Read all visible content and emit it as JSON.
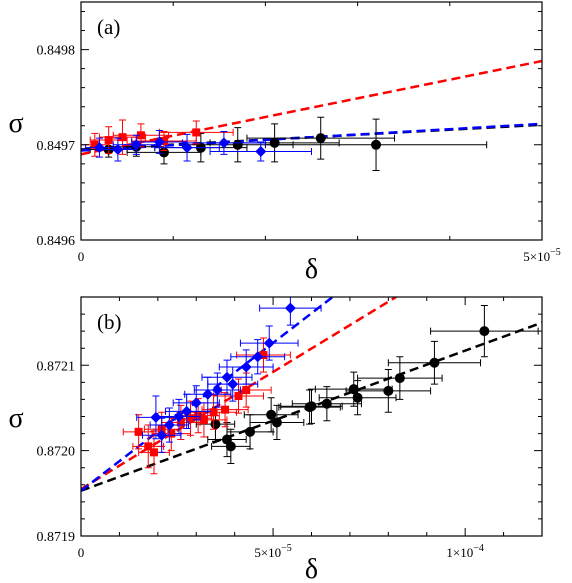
{
  "chart_data": [
    {
      "panel_label": "(a)",
      "type": "scatter",
      "xlabel": "δ",
      "ylabel": "σ",
      "xlim": [
        0,
        5e-05
      ],
      "ylim": [
        0.8496,
        0.84985
      ],
      "x_ticks": [
        {
          "value": 0,
          "label": "0"
        },
        {
          "value": 5e-05,
          "label": "5×10",
          "exp": "−5"
        }
      ],
      "y_ticks": [
        {
          "value": 0.8496,
          "label": "0.8496"
        },
        {
          "value": 0.8497,
          "label": "0.8497"
        },
        {
          "value": 0.8498,
          "label": "0.8498"
        }
      ],
      "series": [
        {
          "color": "#000000",
          "marker": "circle",
          "points": [
            {
              "x": 3e-06,
              "y": 0.849695,
              "xerr": 2e-06,
              "yerr": 8e-06
            },
            {
              "x": 6e-06,
              "y": 0.849698,
              "xerr": 3e-06,
              "yerr": 1e-05
            },
            {
              "x": 9e-06,
              "y": 0.849692,
              "xerr": 4e-06,
              "yerr": 1.2e-05
            },
            {
              "x": 1.3e-05,
              "y": 0.849697,
              "xerr": 5e-06,
              "yerr": 1.5e-05
            },
            {
              "x": 1.7e-05,
              "y": 0.8497,
              "xerr": 6e-06,
              "yerr": 1.8e-05
            },
            {
              "x": 2.1e-05,
              "y": 0.849702,
              "xerr": 7e-06,
              "yerr": 2e-05
            },
            {
              "x": 2.6e-05,
              "y": 0.849707,
              "xerr": 8e-06,
              "yerr": 2.2e-05
            },
            {
              "x": 3.2e-05,
              "y": 0.8497,
              "xerr": 1.2e-05,
              "yerr": 2.7e-05
            }
          ],
          "fit": {
            "x": [
              0,
              5e-05
            ],
            "y": [
              0.849695,
              0.849721
            ]
          }
        },
        {
          "color": "#ff0000",
          "marker": "square",
          "points": [
            {
              "x": 1.5e-06,
              "y": 0.8497,
              "xerr": 1.5e-06,
              "yerr": 1.2e-05
            },
            {
              "x": 3e-06,
              "y": 0.849705,
              "xerr": 2e-06,
              "yerr": 1.4e-05
            },
            {
              "x": 4.5e-06,
              "y": 0.849708,
              "xerr": 2.5e-06,
              "yerr": 1.8e-05
            },
            {
              "x": 6.5e-06,
              "y": 0.84971,
              "xerr": 3e-06,
              "yerr": 1.2e-05
            },
            {
              "x": 9e-06,
              "y": 0.849704,
              "xerr": 3.5e-06,
              "yerr": 1e-05
            },
            {
              "x": 1.25e-05,
              "y": 0.849713,
              "xerr": 4e-06,
              "yerr": 1.2e-05
            }
          ],
          "fit": {
            "x": [
              0,
              5e-05
            ],
            "y": [
              0.84969,
              0.849788
            ]
          }
        },
        {
          "color": "#0000ff",
          "marker": "diamond",
          "points": [
            {
              "x": 2e-06,
              "y": 0.849697,
              "xerr": 1.5e-06,
              "yerr": 1e-05
            },
            {
              "x": 4e-06,
              "y": 0.849695,
              "xerr": 2e-06,
              "yerr": 1.2e-05
            },
            {
              "x": 6e-06,
              "y": 0.8497,
              "xerr": 2.5e-06,
              "yerr": 1e-05
            },
            {
              "x": 8.5e-06,
              "y": 0.849703,
              "xerr": 3e-06,
              "yerr": 1.2e-05
            },
            {
              "x": 1.15e-05,
              "y": 0.849697,
              "xerr": 3.5e-06,
              "yerr": 1.4e-05
            },
            {
              "x": 1.55e-05,
              "y": 0.849702,
              "xerr": 4.5e-06,
              "yerr": 1.2e-05
            },
            {
              "x": 1.95e-05,
              "y": 0.849693,
              "xerr": 5.5e-06,
              "yerr": 1e-05
            }
          ],
          "fit": {
            "x": [
              0,
              5e-05
            ],
            "y": [
              0.849694,
              0.849722
            ]
          }
        }
      ]
    },
    {
      "panel_label": "(b)",
      "type": "scatter",
      "xlabel": "δ",
      "ylabel": "σ",
      "xlim": [
        0,
        0.00012
      ],
      "ylim": [
        0.8719,
        0.87218
      ],
      "x_ticks": [
        {
          "value": 0,
          "label": "0"
        },
        {
          "value": 5e-05,
          "label": "5×10",
          "exp": "−5"
        },
        {
          "value": 0.0001,
          "label": "1×10",
          "exp": "−4"
        }
      ],
      "y_ticks": [
        {
          "value": 0.8719,
          "label": "0.8719"
        },
        {
          "value": 0.872,
          "label": "0.8720"
        },
        {
          "value": 0.8721,
          "label": "0.8721"
        }
      ],
      "series": [
        {
          "color": "#000000",
          "marker": "circle",
          "points": [
            {
              "x": 3.5e-05,
              "y": 0.872031,
              "xerr": 5e-06,
              "yerr": 2e-05
            },
            {
              "x": 3.8e-05,
              "y": 0.872013,
              "xerr": 5e-06,
              "yerr": 2e-05
            },
            {
              "x": 3.9e-05,
              "y": 0.872005,
              "xerr": 5e-06,
              "yerr": 2e-05
            },
            {
              "x": 4.4e-05,
              "y": 0.872022,
              "xerr": 6e-06,
              "yerr": 2e-05
            },
            {
              "x": 4.95e-05,
              "y": 0.872042,
              "xerr": 7e-06,
              "yerr": 2e-05
            },
            {
              "x": 5.1e-05,
              "y": 0.872033,
              "xerr": 7e-06,
              "yerr": 2e-05
            },
            {
              "x": 5.95e-05,
              "y": 0.872051,
              "xerr": 8e-06,
              "yerr": 2e-05
            },
            {
              "x": 6e-05,
              "y": 0.872052,
              "xerr": 8e-06,
              "yerr": 2e-05
            },
            {
              "x": 6.4e-05,
              "y": 0.872055,
              "xerr": 9e-06,
              "yerr": 2e-05
            },
            {
              "x": 7.1e-05,
              "y": 0.872072,
              "xerr": 1e-05,
              "yerr": 2e-05
            },
            {
              "x": 7.2e-05,
              "y": 0.872062,
              "xerr": 1e-05,
              "yerr": 2e-05
            },
            {
              "x": 8e-05,
              "y": 0.87207,
              "xerr": 1.1e-05,
              "yerr": 2.5e-05
            },
            {
              "x": 8.3e-05,
              "y": 0.872085,
              "xerr": 1.1e-05,
              "yerr": 2.5e-05
            },
            {
              "x": 9.2e-05,
              "y": 0.872103,
              "xerr": 1.2e-05,
              "yerr": 2.5e-05
            },
            {
              "x": 0.000105,
              "y": 0.87214,
              "xerr": 1.4e-05,
              "yerr": 3e-05
            }
          ],
          "fit": {
            "x": [
              0,
              0.00012
            ],
            "y": [
              0.871953,
              0.87215
            ]
          }
        },
        {
          "color": "#ff0000",
          "marker": "square",
          "points": [
            {
              "x": 1.5e-05,
              "y": 0.872022,
              "xerr": 4e-06,
              "yerr": 2e-05
            },
            {
              "x": 1.75e-05,
              "y": 0.872005,
              "xerr": 4e-06,
              "yerr": 2.5e-05
            },
            {
              "x": 1.9e-05,
              "y": 0.871998,
              "xerr": 4e-06,
              "yerr": 2.5e-05
            },
            {
              "x": 2.1e-05,
              "y": 0.872025,
              "xerr": 4.5e-06,
              "yerr": 2e-05
            },
            {
              "x": 2.35e-05,
              "y": 0.87202,
              "xerr": 5e-06,
              "yerr": 2e-05
            },
            {
              "x": 2.6e-05,
              "y": 0.872033,
              "xerr": 5e-06,
              "yerr": 2e-05
            },
            {
              "x": 2.85e-05,
              "y": 0.872038,
              "xerr": 5.5e-06,
              "yerr": 2e-05
            },
            {
              "x": 3.05e-05,
              "y": 0.872041,
              "xerr": 5.5e-06,
              "yerr": 2e-05
            },
            {
              "x": 3.2e-05,
              "y": 0.872036,
              "xerr": 6e-06,
              "yerr": 2e-05
            },
            {
              "x": 3.45e-05,
              "y": 0.872045,
              "xerr": 6e-06,
              "yerr": 2e-05
            },
            {
              "x": 3.75e-05,
              "y": 0.872048,
              "xerr": 6e-06,
              "yerr": 2e-05
            },
            {
              "x": 4.1e-05,
              "y": 0.872064,
              "xerr": 6.5e-06,
              "yerr": 2e-05
            },
            {
              "x": 4.3e-05,
              "y": 0.872071,
              "xerr": 6.5e-06,
              "yerr": 2e-05
            },
            {
              "x": 4.75e-05,
              "y": 0.872112,
              "xerr": 7e-06,
              "yerr": 2e-05
            }
          ],
          "fit": {
            "x": [
              0,
              8.2e-05
            ],
            "y": [
              0.871955,
              0.87218
            ]
          }
        },
        {
          "color": "#0000ff",
          "marker": "diamond",
          "points": [
            {
              "x": 1.95e-05,
              "y": 0.872039,
              "xerr": 5e-06,
              "yerr": 2.5e-05
            },
            {
              "x": 2.1e-05,
              "y": 0.872018,
              "xerr": 5e-06,
              "yerr": 2e-05
            },
            {
              "x": 2.3e-05,
              "y": 0.87203,
              "xerr": 5e-06,
              "yerr": 2e-05
            },
            {
              "x": 2.55e-05,
              "y": 0.87204,
              "xerr": 5.5e-06,
              "yerr": 2e-05
            },
            {
              "x": 2.75e-05,
              "y": 0.872046,
              "xerr": 5.5e-06,
              "yerr": 2e-05
            },
            {
              "x": 3e-05,
              "y": 0.872056,
              "xerr": 6e-06,
              "yerr": 2e-05
            },
            {
              "x": 3.3e-05,
              "y": 0.872066,
              "xerr": 6e-06,
              "yerr": 2e-05
            },
            {
              "x": 3.55e-05,
              "y": 0.872071,
              "xerr": 6e-06,
              "yerr": 2e-05
            },
            {
              "x": 3.8e-05,
              "y": 0.872086,
              "xerr": 6.5e-06,
              "yerr": 2e-05
            },
            {
              "x": 3.95e-05,
              "y": 0.872078,
              "xerr": 6.5e-06,
              "yerr": 2e-05
            },
            {
              "x": 4.3e-05,
              "y": 0.872098,
              "xerr": 7e-06,
              "yerr": 2e-05
            },
            {
              "x": 4.6e-05,
              "y": 0.87211,
              "xerr": 7e-06,
              "yerr": 2e-05
            },
            {
              "x": 4.9e-05,
              "y": 0.872126,
              "xerr": 7.5e-06,
              "yerr": 2e-05
            },
            {
              "x": 5.45e-05,
              "y": 0.872167,
              "xerr": 8e-06,
              "yerr": 2e-05
            }
          ],
          "fit": {
            "x": [
              0,
              6.55e-05
            ],
            "y": [
              0.871953,
              0.87218
            ]
          }
        }
      ]
    }
  ]
}
